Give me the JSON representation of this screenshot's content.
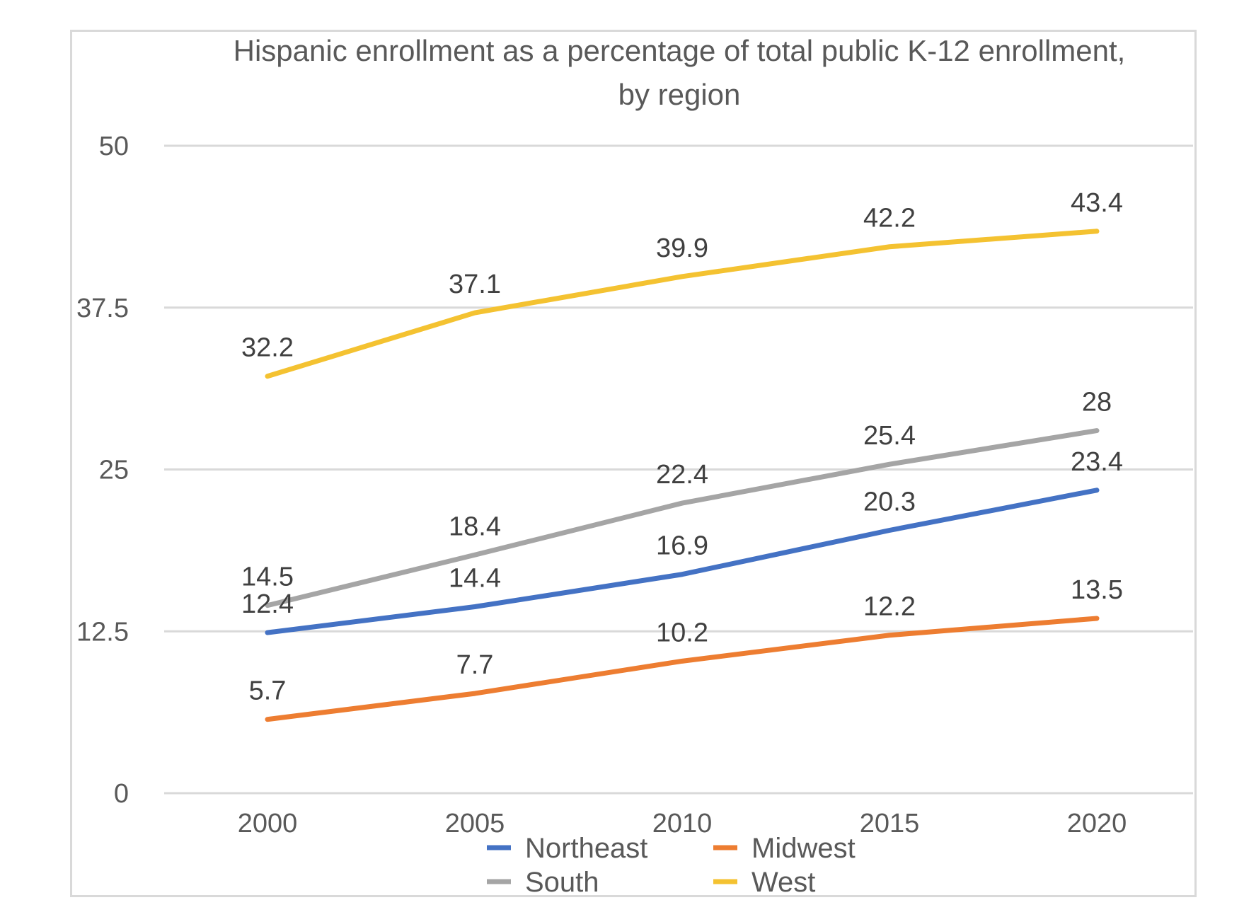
{
  "chart_data": {
    "type": "line",
    "title": "Hispanic enrollment as a percentage of total public K-12 enrollment, by region",
    "title_lines": [
      "Hispanic enrollment as a percentage of total public K-12 enrollment,",
      "by region"
    ],
    "xlabel": "",
    "ylabel": "",
    "categories": [
      "2000",
      "2005",
      "2010",
      "2015",
      "2020"
    ],
    "yticks": [
      "0",
      "12.5",
      "25",
      "37.5",
      "50"
    ],
    "ylim": [
      0,
      50
    ],
    "grid": true,
    "legend_position": "bottom",
    "series": [
      {
        "name": "Northeast",
        "color": "#4472C4",
        "values": [
          12.4,
          14.4,
          16.9,
          20.3,
          23.4
        ]
      },
      {
        "name": "Midwest",
        "color": "#ED7D31",
        "values": [
          5.7,
          7.7,
          10.2,
          12.2,
          13.5
        ]
      },
      {
        "name": "South",
        "color": "#A5A5A5",
        "values": [
          14.5,
          18.4,
          22.4,
          25.4,
          28
        ]
      },
      {
        "name": "West",
        "color": "#F4C231",
        "values": [
          32.2,
          37.1,
          39.9,
          42.2,
          43.4
        ]
      }
    ]
  }
}
